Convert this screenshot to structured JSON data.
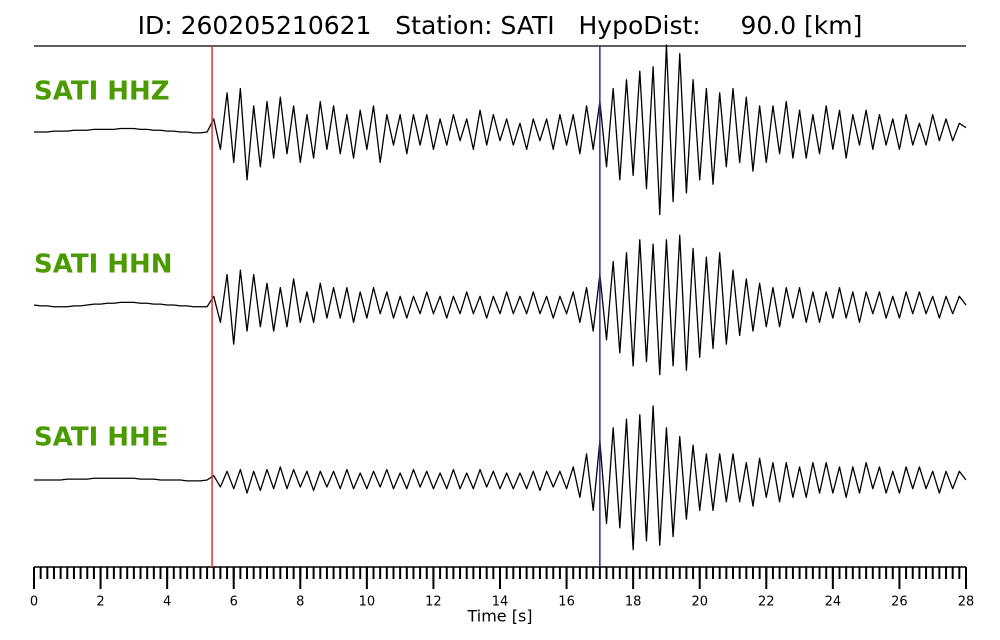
{
  "chart_data": {
    "type": "line",
    "title": "ID: 260205210621   Station: SATI   HypoDist:     90.0 [km]",
    "xlabel": "Time [s]",
    "xlim": [
      0,
      28
    ],
    "xticks": [
      0,
      2,
      4,
      6,
      8,
      10,
      12,
      14,
      16,
      18,
      20,
      22,
      24,
      26,
      28
    ],
    "ylim": [
      -1,
      1
    ],
    "markers": [
      {
        "x": 5.35,
        "color": "#e03030"
      },
      {
        "x": 17.0,
        "color": "#2030a0"
      }
    ],
    "label_color": "#4a9a00",
    "x": [
      0,
      0.2,
      0.4,
      0.6,
      0.8,
      1,
      1.2,
      1.4,
      1.6,
      1.8,
      2,
      2.2,
      2.4,
      2.6,
      2.8,
      3,
      3.2,
      3.4,
      3.6,
      3.8,
      4,
      4.2,
      4.4,
      4.6,
      4.8,
      5,
      5.2,
      5.4,
      5.6,
      5.8,
      6,
      6.2,
      6.4,
      6.6,
      6.8,
      7,
      7.2,
      7.4,
      7.6,
      7.8,
      8,
      8.2,
      8.4,
      8.6,
      8.8,
      9,
      9.2,
      9.4,
      9.6,
      9.8,
      10,
      10.2,
      10.4,
      10.6,
      10.8,
      11,
      11.2,
      11.4,
      11.6,
      11.8,
      12,
      12.2,
      12.4,
      12.6,
      12.8,
      13,
      13.2,
      13.4,
      13.6,
      13.8,
      14,
      14.2,
      14.4,
      14.6,
      14.8,
      15,
      15.2,
      15.4,
      15.6,
      15.8,
      16,
      16.2,
      16.4,
      16.6,
      16.8,
      17,
      17.2,
      17.4,
      17.6,
      17.8,
      18,
      18.2,
      18.4,
      18.6,
      18.8,
      19,
      19.2,
      19.4,
      19.6,
      19.8,
      20,
      20.2,
      20.4,
      20.6,
      20.8,
      21,
      21.2,
      21.4,
      21.6,
      21.8,
      22,
      22.2,
      22.4,
      22.6,
      22.8,
      23,
      23.2,
      23.4,
      23.6,
      23.8,
      24,
      24.2,
      24.4,
      24.6,
      24.8,
      25,
      25.2,
      25.4,
      25.6,
      25.8,
      26,
      26.2,
      26.4,
      26.6,
      26.8,
      27,
      27.2,
      27.4,
      27.6,
      27.8,
      28
    ],
    "series": [
      {
        "name": "SATI HHZ",
        "color": "#000000",
        "values": [
          0,
          0,
          0,
          0.01,
          0.01,
          0.01,
          0.02,
          0.02,
          0.02,
          0.03,
          0.03,
          0.03,
          0.03,
          0.04,
          0.04,
          0.04,
          0.03,
          0.03,
          0.02,
          0.02,
          0.01,
          0.01,
          0,
          0,
          -0.01,
          -0.01,
          0,
          0.15,
          -0.2,
          0.45,
          -0.35,
          0.5,
          -0.55,
          0.3,
          -0.4,
          0.35,
          -0.3,
          0.4,
          -0.25,
          0.3,
          -0.35,
          0.2,
          -0.3,
          0.35,
          -0.2,
          0.3,
          -0.25,
          0.2,
          -0.3,
          0.25,
          -0.2,
          0.3,
          -0.35,
          0.2,
          -0.15,
          0.2,
          -0.25,
          0.2,
          -0.15,
          0.2,
          -0.2,
          0.15,
          -0.15,
          0.2,
          -0.1,
          0.15,
          -0.2,
          0.25,
          -0.15,
          0.2,
          -0.1,
          0.15,
          -0.15,
          0.1,
          -0.2,
          0.15,
          -0.1,
          0.15,
          -0.2,
          0.2,
          -0.15,
          0.2,
          -0.25,
          0.3,
          -0.2,
          0.35,
          -0.4,
          0.5,
          -0.55,
          0.6,
          -0.5,
          0.7,
          -0.65,
          0.75,
          -0.95,
          1.0,
          -0.8,
          0.9,
          -0.7,
          0.6,
          -0.55,
          0.5,
          -0.6,
          0.45,
          -0.4,
          0.5,
          -0.35,
          0.4,
          -0.45,
          0.3,
          -0.35,
          0.3,
          -0.25,
          0.35,
          -0.3,
          0.25,
          -0.3,
          0.2,
          -0.25,
          0.3,
          -0.2,
          0.25,
          -0.3,
          0.2,
          -0.15,
          0.25,
          -0.2,
          0.2,
          -0.15,
          0.15,
          -0.2,
          0.2,
          -0.15,
          0.1,
          -0.15,
          0.2,
          -0.1,
          0.15,
          -0.1,
          0.1,
          0.05
        ]
      },
      {
        "name": "SATI HHN",
        "color": "#000000",
        "values": [
          0,
          -0.01,
          -0.01,
          -0.02,
          -0.02,
          -0.02,
          -0.01,
          -0.01,
          0,
          0.01,
          0.01,
          0.02,
          0.02,
          0.03,
          0.03,
          0.03,
          0.02,
          0.02,
          0.01,
          0.01,
          0,
          0,
          -0.01,
          -0.01,
          -0.02,
          -0.02,
          -0.02,
          0.1,
          -0.2,
          0.35,
          -0.45,
          0.4,
          -0.3,
          0.35,
          -0.25,
          0.25,
          -0.3,
          0.2,
          -0.25,
          0.3,
          -0.2,
          0.15,
          -0.2,
          0.25,
          -0.15,
          0.2,
          -0.15,
          0.2,
          -0.2,
          0.15,
          -0.15,
          0.2,
          -0.1,
          0.15,
          -0.15,
          0.1,
          -0.15,
          0.1,
          -0.1,
          0.15,
          -0.1,
          0.1,
          -0.15,
          0.1,
          -0.1,
          0.15,
          -0.1,
          0.1,
          -0.15,
          0.1,
          -0.1,
          0.15,
          -0.1,
          0.1,
          -0.1,
          0.15,
          -0.1,
          0.1,
          -0.15,
          0.1,
          -0.1,
          0.15,
          -0.2,
          0.2,
          -0.3,
          0.35,
          -0.4,
          0.5,
          -0.55,
          0.6,
          -0.7,
          0.75,
          -0.65,
          0.7,
          -0.8,
          0.75,
          -0.7,
          0.8,
          -0.75,
          0.65,
          -0.6,
          0.55,
          -0.5,
          0.6,
          -0.45,
          0.4,
          -0.35,
          0.3,
          -0.3,
          0.25,
          -0.25,
          0.2,
          -0.25,
          0.2,
          -0.15,
          0.2,
          -0.2,
          0.15,
          -0.2,
          0.15,
          -0.15,
          0.2,
          -0.15,
          0.15,
          -0.2,
          0.15,
          -0.1,
          0.15,
          -0.15,
          0.1,
          -0.15,
          0.15,
          -0.1,
          0.15,
          -0.1,
          0.1,
          -0.15,
          0.1,
          -0.1,
          0.1,
          0
        ]
      },
      {
        "name": "SATI HHE",
        "color": "#000000",
        "values": [
          0,
          0,
          0,
          0,
          0,
          0.01,
          0.01,
          0.01,
          0.01,
          0.02,
          0.02,
          0.02,
          0.02,
          0.02,
          0.02,
          0.02,
          0.01,
          0.01,
          0.01,
          0,
          0,
          0,
          0,
          -0.01,
          -0.01,
          -0.01,
          0,
          0.05,
          -0.08,
          0.1,
          -0.1,
          0.12,
          -0.15,
          0.1,
          -0.12,
          0.12,
          -0.1,
          0.15,
          -0.1,
          0.12,
          -0.08,
          0.1,
          -0.12,
          0.1,
          -0.08,
          0.1,
          -0.1,
          0.12,
          -0.1,
          0.08,
          -0.1,
          0.1,
          -0.08,
          0.12,
          -0.1,
          0.08,
          -0.1,
          0.12,
          -0.08,
          0.1,
          -0.1,
          0.08,
          -0.1,
          0.12,
          -0.1,
          0.08,
          -0.1,
          0.12,
          -0.08,
          0.1,
          -0.1,
          0.08,
          -0.1,
          0.08,
          -0.1,
          0.1,
          -0.12,
          0.1,
          -0.08,
          0.1,
          -0.1,
          0.15,
          -0.2,
          0.3,
          -0.35,
          0.45,
          -0.5,
          0.6,
          -0.55,
          0.7,
          -0.8,
          0.75,
          -0.7,
          0.85,
          -0.75,
          0.6,
          -0.65,
          0.5,
          -0.45,
          0.4,
          -0.35,
          0.3,
          -0.35,
          0.3,
          -0.25,
          0.3,
          -0.25,
          0.2,
          -0.3,
          0.25,
          -0.2,
          0.2,
          -0.25,
          0.2,
          -0.2,
          0.15,
          -0.2,
          0.2,
          -0.15,
          0.2,
          -0.15,
          0.15,
          -0.2,
          0.15,
          -0.15,
          0.2,
          -0.1,
          0.15,
          -0.15,
          0.1,
          -0.15,
          0.15,
          -0.1,
          0.15,
          -0.1,
          0.1,
          -0.15,
          0.1,
          -0.1,
          0.1,
          0
        ]
      }
    ]
  }
}
